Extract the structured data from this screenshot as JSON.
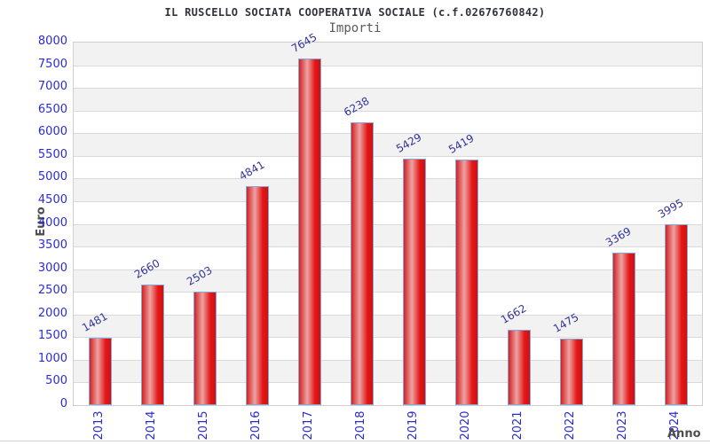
{
  "header": {
    "title": "IL RUSCELLO SOCIATA COOPERATIVA SOCIALE (c.f.02676760842)",
    "subtitle": "Importi"
  },
  "chart_data": {
    "type": "bar",
    "title": "IL RUSCELLO SOCIATA COOPERATIVA SOCIALE (c.f.02676760842)",
    "subtitle": "Importi",
    "xlabel": "Anno",
    "ylabel": "Euro",
    "categories": [
      "2013",
      "2014",
      "2015",
      "2016",
      "2017",
      "2018",
      "2019",
      "2020",
      "2021",
      "2022",
      "2023",
      "2024"
    ],
    "values": [
      1481,
      2660,
      2503,
      4841,
      7645,
      6238,
      5429,
      5419,
      1662,
      1475,
      3369,
      3995
    ],
    "ylim": [
      0,
      8000
    ],
    "y_ticks": [
      0,
      500,
      1000,
      1500,
      2000,
      2500,
      3000,
      3500,
      4000,
      4500,
      5000,
      5500,
      6000,
      6500,
      7000,
      7500,
      8000
    ],
    "grid": true,
    "legend": false,
    "band_alternation": "gray-white horizontal bands, white at bottom",
    "colors": {
      "bar_edge": "#d42020",
      "bar_highlight": "#eda3a3",
      "bar_border": "#82a7dd",
      "tick_label": "#2b2bd4",
      "value_label": "#333399",
      "band_gray": "#f2f2f2",
      "gridline": "#dadada",
      "title": "#33333f",
      "subtitle": "#5a5a5a",
      "axis_title": "#4d4d4d"
    }
  }
}
